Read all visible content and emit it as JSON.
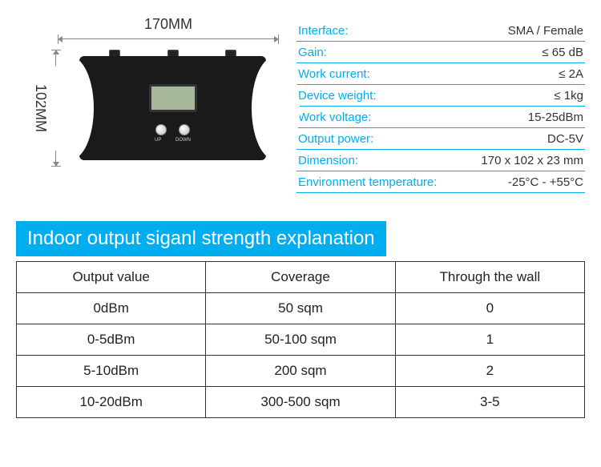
{
  "colors": {
    "accent": "#00aef0",
    "text": "#333333",
    "border": "#333333",
    "background": "#ffffff",
    "device_body": "#1a1a1a",
    "lcd": "#a8b89a"
  },
  "device": {
    "width_label": "170MM",
    "height_label": "102MM",
    "btn_up_label": "UP",
    "btn_down_label": "DOWN"
  },
  "specs": [
    {
      "label": "Interface:",
      "value": "SMA / Female"
    },
    {
      "label": "Gain:",
      "value": "≤ 65 dB"
    },
    {
      "label": "Work current:",
      "value": "≤ 2A"
    },
    {
      "label": "Device weight:",
      "value": "≤ 1kg"
    },
    {
      "label": "Work voltage:",
      "value": "15-25dBm"
    },
    {
      "label": "Output power:",
      "value": "DC-5V"
    },
    {
      "label": "Dimension:",
      "value": "170 x 102 x 23 mm"
    },
    {
      "label": "Environment temperature:",
      "value": "-25°C - +55°C"
    }
  ],
  "banner_title": "Indoor output siganl strength explanation",
  "signal_table": {
    "type": "table",
    "columns": [
      "Output value",
      "Coverage",
      "Through the wall"
    ],
    "col_widths": [
      "33.3%",
      "33.3%",
      "33.3%"
    ],
    "rows": [
      [
        "0dBm",
        "50 sqm",
        "0"
      ],
      [
        "0-5dBm",
        "50-100 sqm",
        "1"
      ],
      [
        "5-10dBm",
        "200 sqm",
        "2"
      ],
      [
        "10-20dBm",
        "300-500 sqm",
        "3-5"
      ]
    ],
    "border_color": "#333333",
    "header_fontsize": 17,
    "cell_fontsize": 17
  }
}
